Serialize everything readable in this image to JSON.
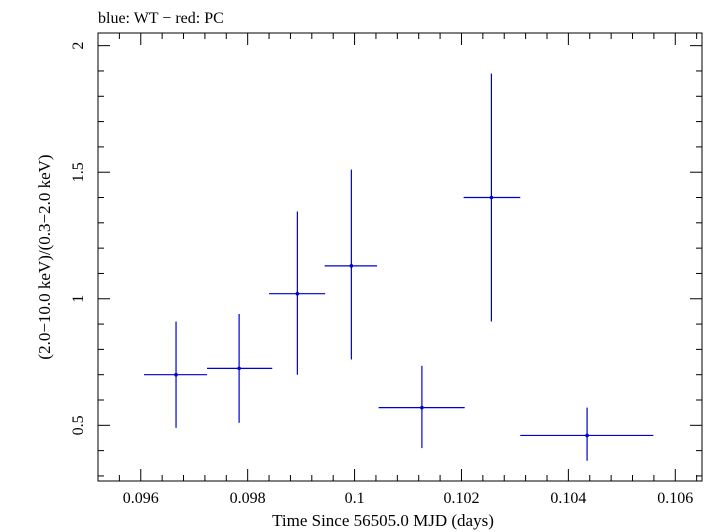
{
  "chart_data": {
    "type": "scatter",
    "title": "blue: WT − red: PC",
    "xlabel": "Time Since 56505.0 MJD (days)",
    "ylabel": "(2.0−10.0 keV)/(0.3−2.0 keV)",
    "xlim": [
      0.0952,
      0.1065
    ],
    "ylim": [
      0.28,
      2.05
    ],
    "x_ticks": [
      0.096,
      0.098,
      0.1,
      0.102,
      0.104,
      0.106
    ],
    "x_tick_labels": [
      "0.096",
      "0.098",
      "0.1",
      "0.102",
      "0.104",
      "0.106"
    ],
    "y_ticks": [
      0.5,
      1,
      1.5,
      2
    ],
    "y_tick_labels": [
      "0.5",
      "1",
      "1.5",
      "2"
    ],
    "grid": false,
    "series": [
      {
        "color": "#0000cc",
        "points": [
          {
            "x": 0.09666,
            "y": 0.7,
            "xerr_lo": 0.0006,
            "xerr_hi": 0.00058,
            "y_lo": 0.49,
            "y_hi": 0.91
          },
          {
            "x": 0.09784,
            "y": 0.725,
            "xerr_lo": 0.0006,
            "xerr_hi": 0.00062,
            "y_lo": 0.51,
            "y_hi": 0.94
          },
          {
            "x": 0.09893,
            "y": 1.02,
            "xerr_lo": 0.00053,
            "xerr_hi": 0.00052,
            "y_lo": 0.7,
            "y_hi": 1.345
          },
          {
            "x": 0.09994,
            "y": 1.13,
            "xerr_lo": 0.0005,
            "xerr_hi": 0.00048,
            "y_lo": 0.76,
            "y_hi": 1.51
          },
          {
            "x": 0.10126,
            "y": 0.57,
            "xerr_lo": 0.00081,
            "xerr_hi": 0.0008,
            "y_lo": 0.41,
            "y_hi": 0.735
          },
          {
            "x": 0.10256,
            "y": 1.4,
            "xerr_lo": 0.00052,
            "xerr_hi": 0.00054,
            "y_lo": 0.91,
            "y_hi": 1.89
          },
          {
            "x": 0.10435,
            "y": 0.46,
            "xerr_lo": 0.00125,
            "xerr_hi": 0.00124,
            "y_lo": 0.36,
            "y_hi": 0.57
          }
        ]
      }
    ]
  }
}
